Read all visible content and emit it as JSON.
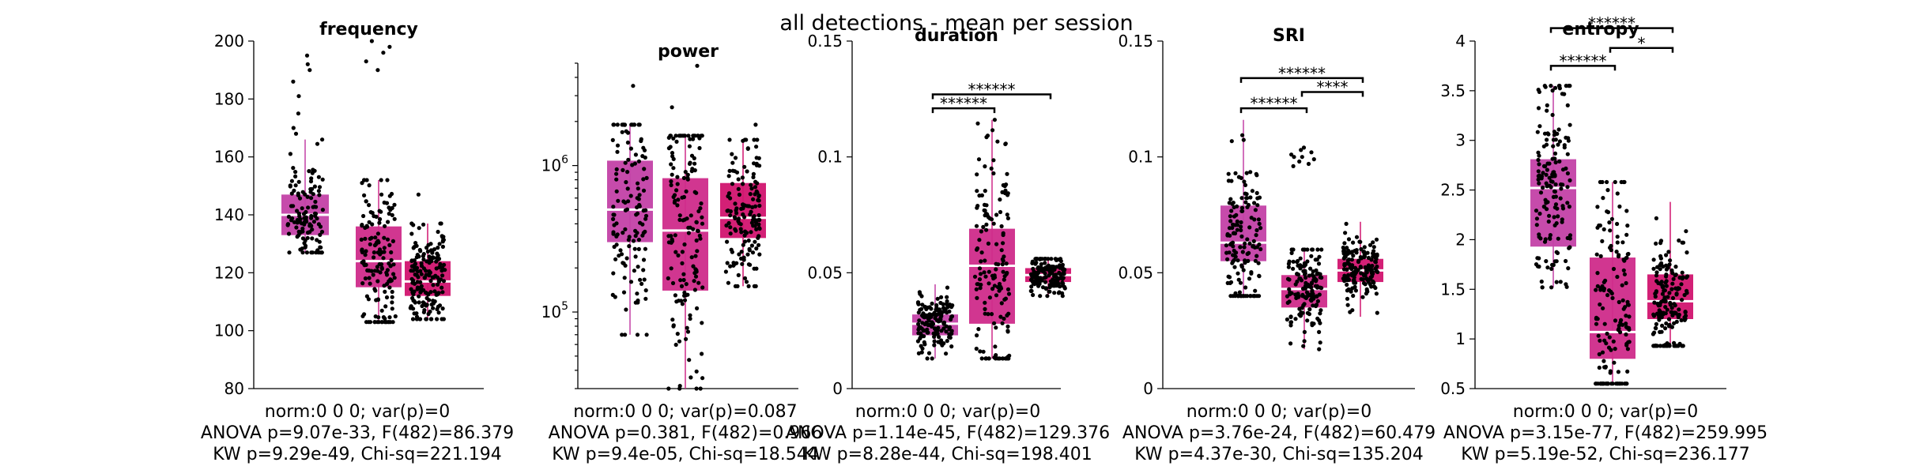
{
  "figure_title": "all detections - mean per session",
  "chart_data": [
    {
      "type": "box",
      "title": "frequency",
      "yscale": "linear",
      "ylim": [
        80,
        200
      ],
      "yticks": [
        80,
        100,
        120,
        140,
        160,
        180,
        200
      ],
      "ytick_labels": [
        "80",
        "100",
        "120",
        "140",
        "160",
        "180",
        "200"
      ],
      "groups": [
        {
          "color": "#c341a6",
          "q1": 133,
          "median": 140,
          "q3": 147,
          "whisker_low": 127,
          "whisker_high": 166,
          "n_points": 120,
          "outliers": [
            192,
            195,
            190,
            186,
            181,
            175,
            170,
            168
          ]
        },
        {
          "color": "#cf2b8a",
          "q1": 115,
          "median": 124,
          "q3": 136,
          "whisker_low": 103,
          "whisker_high": 152,
          "n_points": 150,
          "outliers": [
            190,
            193,
            196,
            198,
            200
          ]
        },
        {
          "color": "#d1146f",
          "q1": 112,
          "median": 117,
          "q3": 124,
          "whisker_low": 104,
          "whisker_high": 137,
          "n_points": 180,
          "outliers": [
            147
          ]
        }
      ],
      "significance": [],
      "stats_lines": [
        "norm:0  0  0; var(p)=0",
        "ANOVA p=9.07e-33, F(482)=86.379",
        "KW p=9.29e-49, Chi-sq=221.194"
      ]
    },
    {
      "type": "box",
      "title": "power",
      "yscale": "log",
      "ylim": [
        30000,
        5000000
      ],
      "yticks": [
        100000,
        1000000
      ],
      "ytick_labels": [
        "10^5",
        "10^6"
      ],
      "groups": [
        {
          "color": "#c341a6",
          "q1": 300000,
          "median": 500000,
          "q3": 1080000,
          "whisker_low": 70000,
          "whisker_high": 1900000,
          "n_points": 130,
          "outliers": [
            3500000
          ]
        },
        {
          "color": "#cf2b8a",
          "q1": 140000,
          "median": 360000,
          "q3": 820000,
          "whisker_low": 30000,
          "whisker_high": 1600000,
          "n_points": 150,
          "outliers": [
            4800000,
            2500000
          ]
        },
        {
          "color": "#d1146f",
          "q1": 320000,
          "median": 440000,
          "q3": 760000,
          "whisker_low": 150000,
          "whisker_high": 1500000,
          "n_points": 150,
          "outliers": [
            1900000
          ]
        }
      ],
      "significance": [],
      "stats_lines": [
        "norm:0  0  0; var(p)=0.087",
        "ANOVA p=0.381, F(482)=0.966",
        "KW p=9.4e-05, Chi-sq=18.544"
      ]
    },
    {
      "type": "box",
      "title": "duration",
      "yscale": "linear",
      "ylim": [
        0,
        0.15
      ],
      "yticks": [
        0,
        0.05,
        0.1,
        0.15
      ],
      "ytick_labels": [
        "0",
        "0.05",
        "0.1",
        "0.15"
      ],
      "groups": [
        {
          "color": "#c341a6",
          "q1": 0.023,
          "median": 0.028,
          "q3": 0.032,
          "whisker_low": 0.013,
          "whisker_high": 0.045,
          "n_points": 150,
          "outliers": []
        },
        {
          "color": "#cf2b8a",
          "q1": 0.028,
          "median": 0.053,
          "q3": 0.069,
          "whisker_low": 0.013,
          "whisker_high": 0.116,
          "n_points": 150,
          "outliers": []
        },
        {
          "color": "#d1146f",
          "q1": 0.046,
          "median": 0.049,
          "q3": 0.052,
          "whisker_low": 0.04,
          "whisker_high": 0.056,
          "n_points": 160,
          "outliers": []
        }
      ],
      "significance": [
        {
          "from": 0,
          "to": 1,
          "level": 0.121,
          "label": "******"
        },
        {
          "from": 0,
          "to": 2,
          "level": 0.127,
          "label": "******"
        }
      ],
      "stats_lines": [
        "norm:0  0  0; var(p)=0",
        "ANOVA p=1.14e-45, F(482)=129.376",
        "KW p=8.28e-44, Chi-sq=198.401"
      ]
    },
    {
      "type": "box",
      "title": "SRI",
      "yscale": "linear",
      "ylim": [
        0,
        0.15
      ],
      "yticks": [
        0,
        0.05,
        0.1,
        0.15
      ],
      "ytick_labels": [
        "0",
        "0.05",
        "0.1",
        "0.15"
      ],
      "groups": [
        {
          "color": "#c341a6",
          "q1": 0.055,
          "median": 0.063,
          "q3": 0.079,
          "whisker_low": 0.04,
          "whisker_high": 0.116,
          "n_points": 150,
          "outliers": []
        },
        {
          "color": "#cf2b8a",
          "q1": 0.035,
          "median": 0.043,
          "q3": 0.049,
          "whisker_low": 0.017,
          "whisker_high": 0.06,
          "n_points": 150,
          "outliers": [
            0.097,
            0.1,
            0.102,
            0.104,
            0.099,
            0.101,
            0.103,
            0.098,
            0.1,
            0.096
          ]
        },
        {
          "color": "#d1146f",
          "q1": 0.046,
          "median": 0.051,
          "q3": 0.056,
          "whisker_low": 0.031,
          "whisker_high": 0.072,
          "n_points": 160,
          "outliers": []
        }
      ],
      "significance": [
        {
          "from": 0,
          "to": 1,
          "level": 0.121,
          "label": "******"
        },
        {
          "from": 1,
          "to": 2,
          "level": 0.128,
          "label": "****"
        },
        {
          "from": 0,
          "to": 2,
          "level": 0.134,
          "label": "******"
        }
      ],
      "stats_lines": [
        "norm:0  0  0; var(p)=0",
        "ANOVA p=3.76e-24, F(482)=60.479",
        "KW p=4.37e-30, Chi-sq=135.204"
      ]
    },
    {
      "type": "box",
      "title": "entropy",
      "yscale": "linear",
      "ylim": [
        0.5,
        4
      ],
      "yticks": [
        0.5,
        1,
        1.5,
        2,
        2.5,
        3,
        3.5,
        4
      ],
      "ytick_labels": [
        "0.5",
        "1",
        "1.5",
        "2",
        "2.5",
        "3",
        "3.5",
        "4"
      ],
      "groups": [
        {
          "color": "#c341a6",
          "q1": 1.93,
          "median": 2.52,
          "q3": 2.81,
          "whisker_low": 1.52,
          "whisker_high": 3.55,
          "n_points": 160,
          "outliers": []
        },
        {
          "color": "#cf2b8a",
          "q1": 0.8,
          "median": 1.07,
          "q3": 1.82,
          "whisker_low": 0.55,
          "whisker_high": 2.58,
          "n_points": 150,
          "outliers": []
        },
        {
          "color": "#d1146f",
          "q1": 1.2,
          "median": 1.38,
          "q3": 1.65,
          "whisker_low": 0.93,
          "whisker_high": 2.38,
          "n_points": 170,
          "outliers": []
        }
      ],
      "significance": [
        {
          "from": 0,
          "to": 1,
          "level": 3.75,
          "label": "******"
        },
        {
          "from": 1,
          "to": 2,
          "level": 3.93,
          "label": "*"
        },
        {
          "from": 0,
          "to": 2,
          "level": 4.13,
          "label": "******"
        }
      ],
      "stats_lines": [
        "norm:0  0  0; var(p)=0",
        "ANOVA p=3.15e-77, F(482)=259.995",
        "KW p=5.19e-52, Chi-sq=236.177"
      ]
    }
  ]
}
